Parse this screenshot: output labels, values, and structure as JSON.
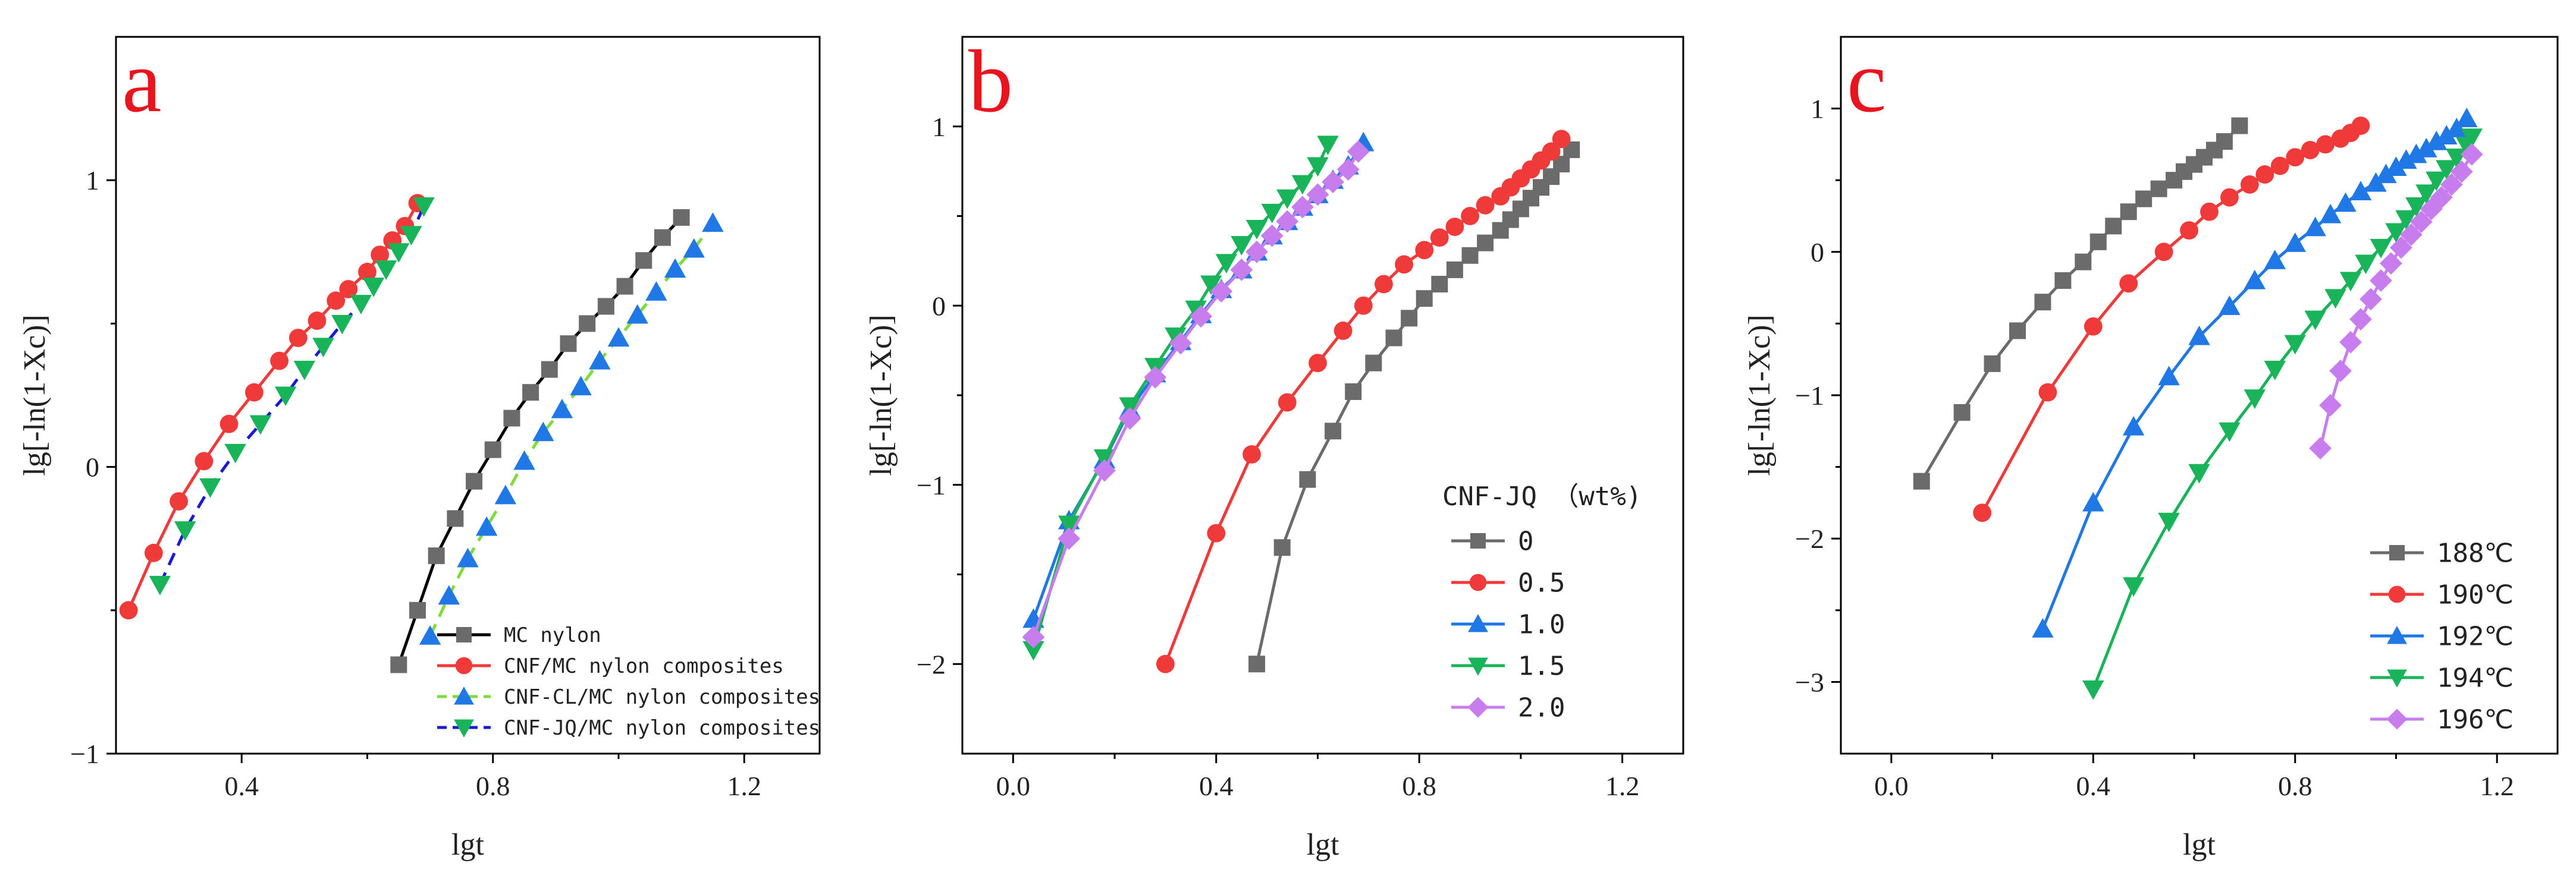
{
  "colors": {
    "gray": "#6b6b6b",
    "red": "#f03a3a",
    "blue": "#1f78e6",
    "green": "#19b45a",
    "purple": "#c77ded",
    "black": "#000000",
    "lightgreen": "#7ddc3a",
    "navy": "#1a1ad6",
    "letter": "#e8141e"
  },
  "chart_data": [
    {
      "type": "line",
      "panel_label": "a",
      "xlabel": "lgt",
      "ylabel": "lg[-ln(1-Xc)]",
      "xlim": [
        0.2,
        1.32
      ],
      "ylim": [
        -1.0,
        1.5
      ],
      "xticks": [
        0.4,
        0.8,
        1.2
      ],
      "xtick_labels": [
        "0.4",
        "0.8",
        "1.2"
      ],
      "yticks": [
        -1,
        0,
        1
      ],
      "ytick_labels": [
        "−1",
        "0",
        "1"
      ],
      "legend": {
        "position": "bottom-right",
        "title": "",
        "entries": [
          "MC nylon",
          "CNF/MC nylon composites",
          "CNF-CL/MC nylon composites",
          "CNF-JQ/MC nylon composites"
        ]
      },
      "series": [
        {
          "name": "MC nylon",
          "marker": "square",
          "color_key": "gray",
          "line_color_key": "black",
          "dash": "",
          "x": [
            0.65,
            0.68,
            0.71,
            0.74,
            0.77,
            0.8,
            0.83,
            0.86,
            0.89,
            0.92,
            0.95,
            0.98,
            1.01,
            1.04,
            1.07,
            1.1
          ],
          "y": [
            -0.69,
            -0.5,
            -0.31,
            -0.18,
            -0.05,
            0.06,
            0.17,
            0.26,
            0.34,
            0.43,
            0.5,
            0.56,
            0.63,
            0.72,
            0.8,
            0.87
          ]
        },
        {
          "name": "CNF/MC nylon composites",
          "marker": "circle",
          "color_key": "red",
          "line_color_key": "red",
          "dash": "",
          "x": [
            0.22,
            0.26,
            0.3,
            0.34,
            0.38,
            0.42,
            0.46,
            0.49,
            0.52,
            0.55,
            0.57,
            0.6,
            0.62,
            0.64,
            0.66,
            0.68
          ],
          "y": [
            -0.5,
            -0.3,
            -0.12,
            0.02,
            0.15,
            0.26,
            0.37,
            0.45,
            0.51,
            0.58,
            0.62,
            0.68,
            0.74,
            0.79,
            0.84,
            0.92
          ]
        },
        {
          "name": "CNF-CL/MC nylon composites",
          "marker": "triangle-up",
          "color_key": "blue",
          "line_color_key": "lightgreen",
          "dash": "22,14",
          "x": [
            0.7,
            0.73,
            0.76,
            0.79,
            0.82,
            0.85,
            0.88,
            0.91,
            0.94,
            0.97,
            1.0,
            1.03,
            1.06,
            1.09,
            1.12,
            1.15
          ],
          "y": [
            -0.59,
            -0.45,
            -0.32,
            -0.21,
            -0.1,
            0.02,
            0.12,
            0.2,
            0.28,
            0.37,
            0.45,
            0.53,
            0.61,
            0.69,
            0.76,
            0.85
          ]
        },
        {
          "name": "CNF-JQ/MC nylon composites",
          "marker": "triangle-down",
          "color_key": "green",
          "line_color_key": "navy",
          "dash": "22,14",
          "x": [
            0.27,
            0.31,
            0.35,
            0.39,
            0.43,
            0.47,
            0.5,
            0.53,
            0.56,
            0.59,
            0.61,
            0.63,
            0.65,
            0.67,
            0.69
          ],
          "y": [
            -0.41,
            -0.22,
            -0.07,
            0.05,
            0.15,
            0.25,
            0.34,
            0.42,
            0.5,
            0.57,
            0.63,
            0.69,
            0.75,
            0.81,
            0.91
          ]
        }
      ]
    },
    {
      "type": "line",
      "panel_label": "b",
      "xlabel": "lgt",
      "ylabel": "lg[-ln(1-Xc)]",
      "xlim": [
        -0.1,
        1.32
      ],
      "ylim": [
        -2.5,
        1.5
      ],
      "xticks": [
        0.0,
        0.4,
        0.8,
        1.2
      ],
      "xtick_labels": [
        "0.0",
        "0.4",
        "0.8",
        "1.2"
      ],
      "yticks": [
        -2,
        -1,
        0,
        1
      ],
      "ytick_labels": [
        "−2",
        "−1",
        "0",
        "1"
      ],
      "legend": {
        "position": "bottom-right",
        "title": "CNF-JQ （wt%)",
        "entries": [
          "0",
          "0.5",
          "1.0",
          "1.5",
          "2.0"
        ]
      },
      "series": [
        {
          "name": "0",
          "marker": "square",
          "color_key": "gray",
          "line_color_key": "gray",
          "dash": "",
          "x": [
            0.48,
            0.53,
            0.58,
            0.63,
            0.67,
            0.71,
            0.75,
            0.78,
            0.81,
            0.84,
            0.87,
            0.9,
            0.93,
            0.96,
            0.98,
            1.0,
            1.02,
            1.04,
            1.06,
            1.08,
            1.1
          ],
          "y": [
            -2.0,
            -1.35,
            -0.97,
            -0.7,
            -0.48,
            -0.32,
            -0.18,
            -0.07,
            0.04,
            0.12,
            0.2,
            0.28,
            0.35,
            0.42,
            0.48,
            0.54,
            0.6,
            0.66,
            0.72,
            0.79,
            0.87
          ]
        },
        {
          "name": "0.5",
          "marker": "circle",
          "color_key": "red",
          "line_color_key": "red",
          "dash": "",
          "x": [
            0.3,
            0.4,
            0.47,
            0.54,
            0.6,
            0.65,
            0.69,
            0.73,
            0.77,
            0.81,
            0.84,
            0.87,
            0.9,
            0.93,
            0.96,
            0.98,
            1.0,
            1.02,
            1.04,
            1.06,
            1.08
          ],
          "y": [
            -2.0,
            -1.27,
            -0.83,
            -0.54,
            -0.32,
            -0.14,
            0.0,
            0.12,
            0.23,
            0.31,
            0.38,
            0.44,
            0.5,
            0.56,
            0.61,
            0.66,
            0.71,
            0.76,
            0.81,
            0.86,
            0.93
          ]
        },
        {
          "name": "1.0",
          "marker": "triangle-up",
          "color_key": "blue",
          "line_color_key": "blue",
          "dash": "",
          "x": [
            0.04,
            0.11,
            0.18,
            0.23,
            0.28,
            0.33,
            0.37,
            0.41,
            0.45,
            0.48,
            0.51,
            0.54,
            0.57,
            0.6,
            0.63,
            0.66,
            0.69
          ],
          "y": [
            -1.75,
            -1.2,
            -0.86,
            -0.58,
            -0.38,
            -0.2,
            -0.05,
            0.09,
            0.2,
            0.3,
            0.39,
            0.47,
            0.55,
            0.62,
            0.7,
            0.78,
            0.91
          ]
        },
        {
          "name": "1.5",
          "marker": "triangle-down",
          "color_key": "green",
          "line_color_key": "green",
          "dash": "",
          "x": [
            0.04,
            0.11,
            0.18,
            0.23,
            0.28,
            0.32,
            0.36,
            0.39,
            0.42,
            0.45,
            0.48,
            0.51,
            0.54,
            0.57,
            0.6,
            0.62
          ],
          "y": [
            -1.92,
            -1.22,
            -0.85,
            -0.56,
            -0.34,
            -0.17,
            -0.02,
            0.12,
            0.24,
            0.34,
            0.43,
            0.52,
            0.6,
            0.68,
            0.78,
            0.9
          ]
        },
        {
          "name": "2.0",
          "marker": "diamond",
          "color_key": "purple",
          "line_color_key": "purple",
          "dash": "",
          "x": [
            0.04,
            0.11,
            0.18,
            0.23,
            0.28,
            0.33,
            0.37,
            0.41,
            0.45,
            0.48,
            0.51,
            0.54,
            0.57,
            0.6,
            0.63,
            0.66,
            0.68
          ],
          "y": [
            -1.85,
            -1.3,
            -0.92,
            -0.63,
            -0.4,
            -0.21,
            -0.06,
            0.08,
            0.2,
            0.3,
            0.39,
            0.47,
            0.55,
            0.62,
            0.69,
            0.76,
            0.86
          ]
        }
      ]
    },
    {
      "type": "line",
      "panel_label": "c",
      "xlabel": "lgt",
      "ylabel": "lg[-ln(1-Xc)]",
      "xlim": [
        -0.1,
        1.32
      ],
      "ylim": [
        -3.5,
        1.5
      ],
      "xticks": [
        0.0,
        0.4,
        0.8,
        1.2
      ],
      "xtick_labels": [
        "0.0",
        "0.4",
        "0.8",
        "1.2"
      ],
      "yticks": [
        -3,
        -2,
        -1,
        0,
        1
      ],
      "ytick_labels": [
        "−3",
        "−2",
        "−1",
        "0",
        "1"
      ],
      "legend": {
        "position": "bottom-right",
        "title": "",
        "entries": [
          "188℃",
          "190℃",
          "192℃",
          "194℃",
          "196℃"
        ]
      },
      "series": [
        {
          "name": "188℃",
          "marker": "square",
          "color_key": "gray",
          "line_color_key": "gray",
          "dash": "",
          "x": [
            0.06,
            0.14,
            0.2,
            0.25,
            0.3,
            0.34,
            0.38,
            0.41,
            0.44,
            0.47,
            0.5,
            0.53,
            0.56,
            0.58,
            0.6,
            0.62,
            0.64,
            0.66,
            0.69
          ],
          "y": [
            -1.6,
            -1.12,
            -0.78,
            -0.55,
            -0.35,
            -0.2,
            -0.07,
            0.07,
            0.18,
            0.28,
            0.37,
            0.44,
            0.5,
            0.56,
            0.61,
            0.66,
            0.71,
            0.77,
            0.88
          ]
        },
        {
          "name": "190℃",
          "marker": "circle",
          "color_key": "red",
          "line_color_key": "red",
          "dash": "",
          "x": [
            0.18,
            0.31,
            0.4,
            0.47,
            0.54,
            0.59,
            0.63,
            0.67,
            0.71,
            0.74,
            0.77,
            0.8,
            0.83,
            0.86,
            0.89,
            0.91,
            0.93
          ],
          "y": [
            -1.82,
            -0.98,
            -0.52,
            -0.22,
            0.0,
            0.15,
            0.28,
            0.38,
            0.47,
            0.54,
            0.6,
            0.66,
            0.71,
            0.75,
            0.79,
            0.83,
            0.88
          ]
        },
        {
          "name": "192℃",
          "marker": "triangle-up",
          "color_key": "blue",
          "line_color_key": "blue",
          "dash": "",
          "x": [
            0.3,
            0.4,
            0.48,
            0.55,
            0.61,
            0.67,
            0.72,
            0.76,
            0.8,
            0.84,
            0.87,
            0.9,
            0.93,
            0.96,
            0.98,
            1.0,
            1.02,
            1.04,
            1.06,
            1.08,
            1.1,
            1.12,
            1.14
          ],
          "y": [
            -2.63,
            -1.75,
            -1.22,
            -0.87,
            -0.59,
            -0.38,
            -0.2,
            -0.06,
            0.06,
            0.17,
            0.26,
            0.34,
            0.42,
            0.48,
            0.54,
            0.59,
            0.64,
            0.68,
            0.72,
            0.77,
            0.81,
            0.86,
            0.93
          ]
        },
        {
          "name": "194℃",
          "marker": "triangle-down",
          "color_key": "green",
          "line_color_key": "green",
          "dash": "",
          "x": [
            0.4,
            0.48,
            0.55,
            0.61,
            0.67,
            0.72,
            0.76,
            0.8,
            0.84,
            0.88,
            0.91,
            0.94,
            0.97,
            1.0,
            1.02,
            1.04,
            1.06,
            1.08,
            1.1,
            1.12,
            1.14,
            1.15
          ],
          "y": [
            -3.05,
            -2.33,
            -1.88,
            -1.54,
            -1.25,
            -1.02,
            -0.82,
            -0.64,
            -0.47,
            -0.32,
            -0.2,
            -0.08,
            0.03,
            0.14,
            0.23,
            0.32,
            0.41,
            0.5,
            0.58,
            0.66,
            0.74,
            0.8
          ]
        },
        {
          "name": "196℃",
          "marker": "diamond",
          "color_key": "purple",
          "line_color_key": "purple",
          "dash": "",
          "x": [
            0.85,
            0.87,
            0.89,
            0.91,
            0.93,
            0.95,
            0.97,
            0.99,
            1.01,
            1.03,
            1.05,
            1.07,
            1.09,
            1.11,
            1.13,
            1.15
          ],
          "y": [
            -1.37,
            -1.07,
            -0.83,
            -0.63,
            -0.47,
            -0.33,
            -0.2,
            -0.08,
            0.03,
            0.12,
            0.21,
            0.3,
            0.38,
            0.47,
            0.56,
            0.68
          ]
        }
      ]
    }
  ]
}
